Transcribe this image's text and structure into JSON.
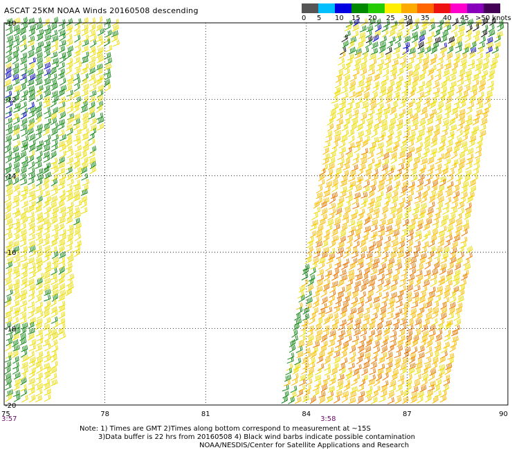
{
  "title": "ASCAT 25KM NOAA Winds 20160508 descending",
  "legend": {
    "labels": [
      "0",
      "5",
      "10",
      "15",
      "20",
      "25",
      "30",
      "35",
      "40",
      "45",
      ">50 knots"
    ],
    "colors": [
      "#555555",
      "#00bfff",
      "#0000e0",
      "#008800",
      "#22cc00",
      "#ffee00",
      "#ffaa00",
      "#ff6600",
      "#ee1111",
      "#ff00cc",
      "#8800bb",
      "#440055"
    ]
  },
  "map": {
    "lon_range": [
      75,
      90
    ],
    "lat_range": [
      -10,
      -20
    ],
    "lon_ticks": [
      "75",
      "78",
      "81",
      "84",
      "87",
      "90"
    ],
    "lat_ticks": [
      "-10",
      "-12",
      "-14",
      "-16",
      "-18",
      "-20"
    ],
    "pass_times": [
      {
        "time": "3:57",
        "lon": 75
      },
      {
        "time": "3:58",
        "lon": 84.5
      }
    ],
    "barb_colors": {
      "green": "#118811",
      "blue": "#0000cc",
      "yellow": "#eedd00",
      "amber": "#ffbb00",
      "orange": "#ee7700",
      "black": "#000000"
    }
  },
  "notes": {
    "line1": "Note: 1) Times are GMT 2)Times along bottom correspond to measurement at ~15S",
    "line2": "3)Data buffer is 22 hrs from 20160508 4) Black wind barbs indicate possible contamination",
    "line3": "NOAA/NESDIS/Center for Satellite Applications and Research"
  }
}
